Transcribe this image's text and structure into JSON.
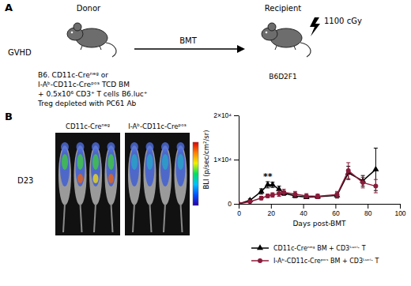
{
  "panel_a": {
    "label": "A",
    "experiment": "GVHD",
    "donor": "Donor",
    "recipient": "Recipient",
    "transfer": "BMT",
    "irradiation": "1100 cGy",
    "donor_lines": [
      "B6. CD11c-Creⁿᵉᵍ or",
      "I-Aᵇ-CD11c-Creᵖᵒˢ TCD BM",
      "+ 0.5x10⁶ CD3⁺ T cells B6.luc⁺",
      "Treg depleted with PC61 Ab"
    ],
    "recipient_strain": "B6D2F1"
  },
  "panel_b": {
    "label": "B",
    "image_titles": [
      "CD11c-Creⁿᵉᵍ",
      "I-Aᵇ-CD11c-Creᵖᵒˢ"
    ],
    "timepoint": "D23"
  },
  "chart_data": {
    "type": "line",
    "x_label": "Days post-BMT",
    "y_label": "BLI (p/sec/cm²/sr)",
    "x": [
      0,
      7,
      14,
      18,
      21,
      25,
      28,
      35,
      42,
      49,
      61,
      68,
      77,
      85
    ],
    "xlim": [
      0,
      100
    ],
    "xticks": [
      0,
      20,
      40,
      60,
      80,
      100
    ],
    "ylim": [
      0,
      20000
    ],
    "yticks": [
      0,
      {
        "value": 10000,
        "label": "1×10⁴"
      },
      {
        "value": 20000,
        "label": "2×10⁴"
      }
    ],
    "legend": "bottom",
    "series": [
      {
        "name": "CD11c-Creⁿᵉᵍ BM + CD3ᴸᵘᶜⁱ· T",
        "color": "#000000",
        "marker": "triangle",
        "values": [
          0,
          800,
          2800,
          4300,
          4300,
          3300,
          2400,
          1800,
          1500,
          1600,
          1900,
          7000,
          5200,
          7800
        ],
        "errors": [
          0,
          300,
          600,
          700,
          600,
          700,
          500,
          400,
          300,
          400,
          600,
          1500,
          1200,
          4800
        ]
      },
      {
        "name": "I-Aᵇ-CD11c-Creᵖᵒˢ BM + CD3ᴸᵘᶜⁱ· T",
        "color": "#8b1a3a",
        "marker": "circle",
        "values": [
          0,
          500,
          1300,
          1800,
          2000,
          2300,
          2600,
          2200,
          1800,
          1700,
          2100,
          7500,
          4800,
          4000
        ],
        "errors": [
          0,
          200,
          400,
          400,
          500,
          600,
          700,
          600,
          500,
          500,
          700,
          1800,
          1200,
          1500
        ]
      }
    ],
    "annotations": [
      {
        "text": "**",
        "x": 18,
        "y": 5600
      }
    ]
  }
}
